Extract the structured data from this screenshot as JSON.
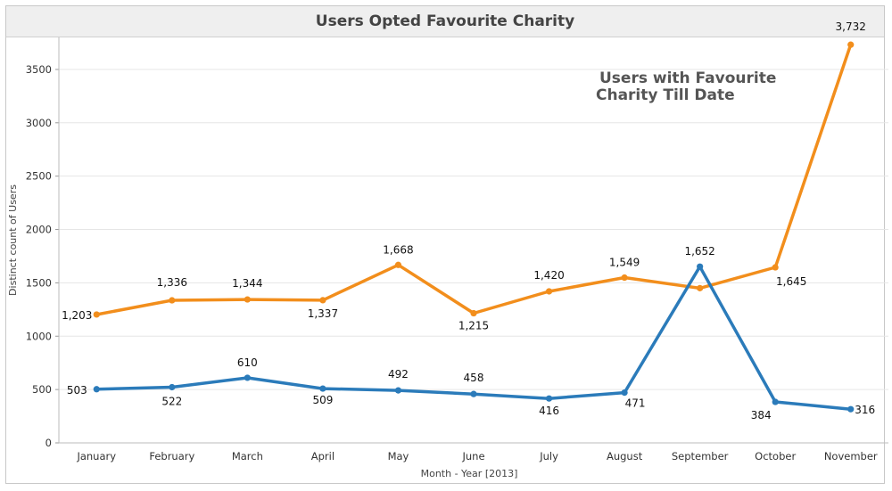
{
  "chart_data": {
    "type": "line",
    "title": "Users Opted Favourite Charity",
    "xlabel": "Month - Year [2013]",
    "ylabel": "Distinct count of Users",
    "ylim": [
      0,
      3800
    ],
    "yticks": [
      0,
      500,
      1000,
      1500,
      2000,
      2500,
      3000,
      3500
    ],
    "categories": [
      "January",
      "February",
      "March",
      "April",
      "May",
      "June",
      "July",
      "August",
      "September",
      "October",
      "November"
    ],
    "grid": "horizontal",
    "series": [
      {
        "color": "#f28e1c",
        "values": [
          1203,
          1336,
          1344,
          1337,
          1668,
          1215,
          1420,
          1549,
          1450,
          1645,
          3732
        ],
        "labels": [
          "1,203",
          "1,336",
          "1,344",
          "1,337",
          "1,668",
          "1,215",
          "1,420",
          "1,549",
          "",
          "1,645",
          "3,732"
        ]
      },
      {
        "color": "#2b7bba",
        "values": [
          503,
          522,
          610,
          509,
          492,
          458,
          416,
          471,
          1652,
          384,
          316
        ],
        "labels": [
          "503",
          "522",
          "610",
          "509",
          "492",
          "458",
          "416",
          "471",
          "1,652",
          "384",
          "316"
        ]
      }
    ],
    "annotation": [
      "Users with Favourite",
      "Charity Till Date"
    ]
  }
}
